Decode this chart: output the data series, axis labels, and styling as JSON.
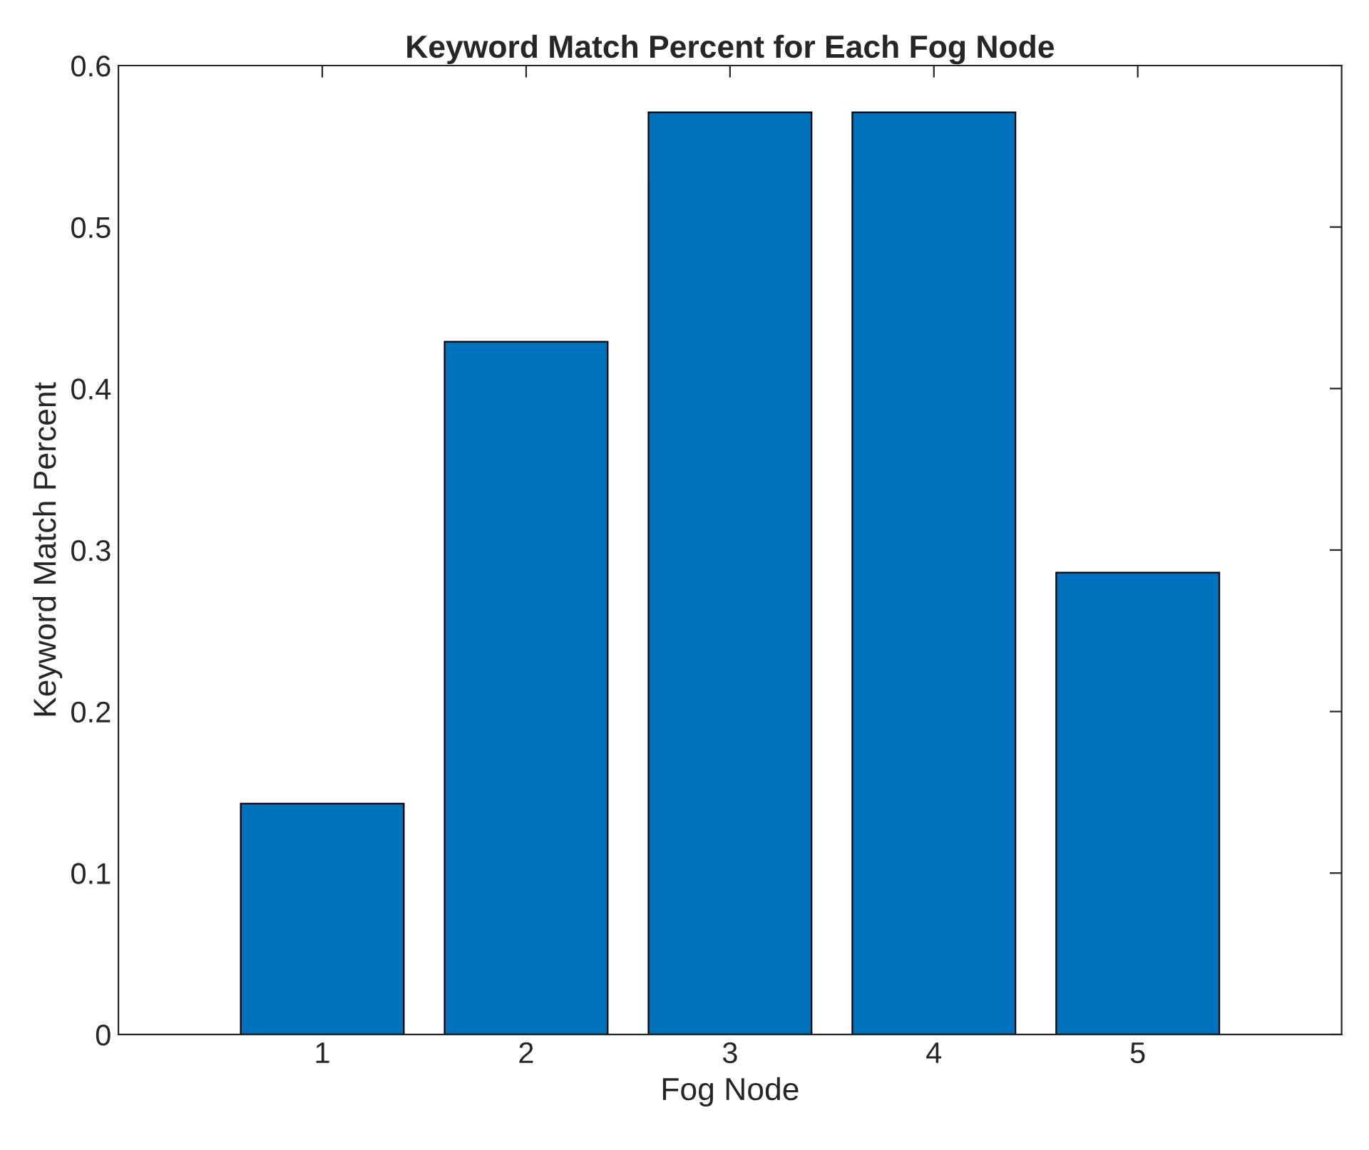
{
  "chart_data": {
    "type": "bar",
    "title": "Keyword Match Percent for Each Fog Node",
    "xlabel": "Fog Node",
    "ylabel": "Keyword Match Percent",
    "x": [
      1,
      2,
      3,
      4,
      5
    ],
    "values": [
      0.143,
      0.429,
      0.571,
      0.571,
      0.286
    ],
    "color": "#0072bd",
    "xlim": [
      0,
      6
    ],
    "xticks": [
      1,
      2,
      3,
      4,
      5
    ],
    "ylim": [
      0,
      0.6
    ],
    "yticks": [
      0,
      0.1,
      0.2,
      0.3,
      0.4,
      0.5,
      0.6
    ],
    "grid": false
  }
}
